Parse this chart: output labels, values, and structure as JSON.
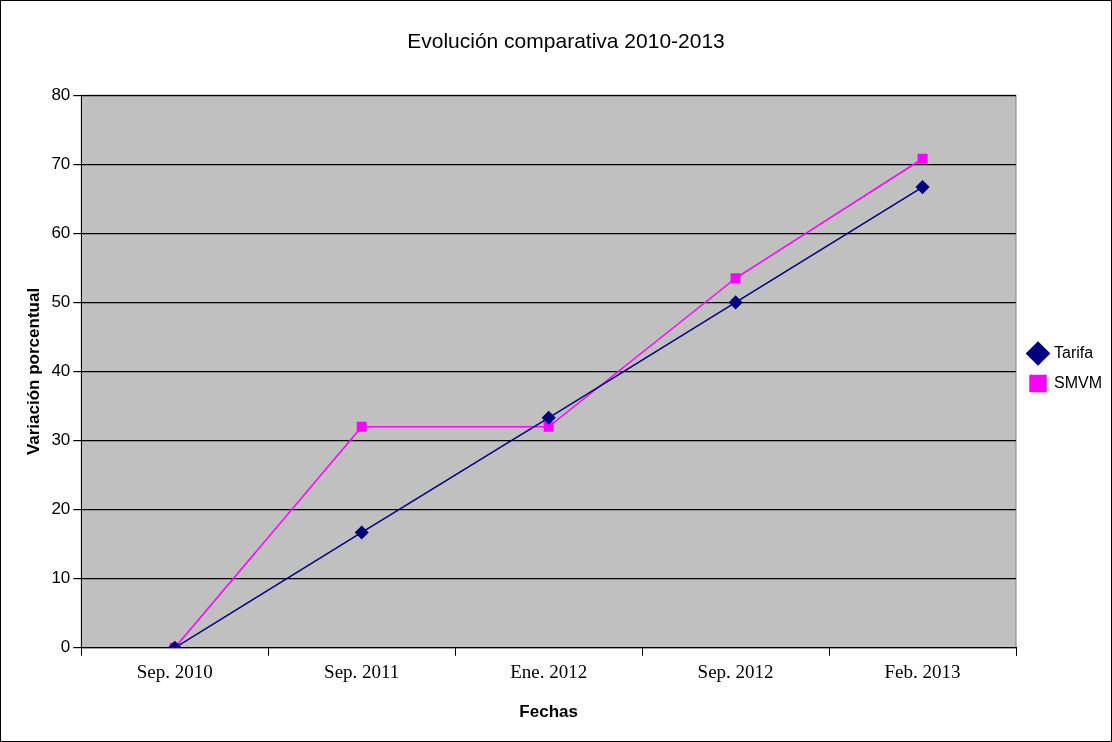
{
  "chart_data": {
    "type": "line",
    "title": "Evolución comparativa 2010-2013",
    "xlabel": "Fechas",
    "ylabel": "Variación porcentual",
    "categories": [
      "Sep. 2010",
      "Sep. 2011",
      "Ene. 2012",
      "Sep. 2012",
      "Feb. 2013"
    ],
    "series": [
      {
        "name": "Tarifa",
        "color": "#000080",
        "marker": "diamond",
        "values": [
          0,
          16.7,
          33.3,
          50,
          66.7
        ]
      },
      {
        "name": "SMVM",
        "color": "#ff00ff",
        "marker": "square",
        "values": [
          0,
          32,
          32,
          53.5,
          70.8
        ]
      }
    ],
    "ylim": [
      0,
      80
    ],
    "yticks": [
      0,
      10,
      20,
      30,
      40,
      50,
      60,
      70,
      80
    ],
    "grid": "y",
    "legend": "right",
    "line_style": "solid"
  }
}
